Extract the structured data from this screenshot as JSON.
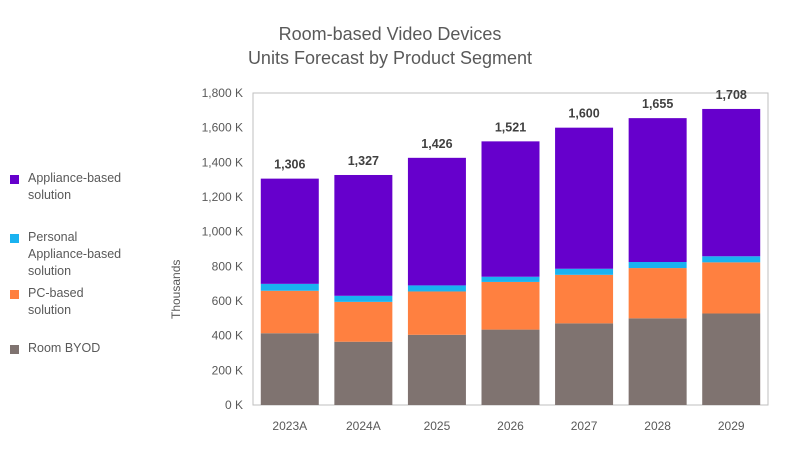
{
  "chart_data": {
    "type": "bar",
    "stacked": true,
    "title": [
      "Room-based Video Devices",
      "Units Forecast by Product Segment"
    ],
    "ylabel": "Thousands",
    "xlabel": "",
    "ylim": [
      0,
      1800
    ],
    "yticks": [
      0,
      200,
      400,
      600,
      800,
      1000,
      1200,
      1400,
      1600,
      1800
    ],
    "ytick_labels": [
      "0 K",
      "200 K",
      "400 K",
      "600 K",
      "800 K",
      "1,000 K",
      "1,200 K",
      "1,400 K",
      "1,600 K",
      "1,800 K"
    ],
    "categories": [
      "2023A",
      "2024A",
      "2025",
      "2026",
      "2027",
      "2028",
      "2029"
    ],
    "series": [
      {
        "name": "Room BYOD",
        "color": "#7f7370",
        "values": [
          414,
          365,
          405,
          435,
          471,
          500,
          528
        ]
      },
      {
        "name": "PC-based\nsolution",
        "color": "#ff8040",
        "values": [
          245,
          230,
          250,
          275,
          280,
          290,
          295
        ]
      },
      {
        "name": "Personal\nAppliance-based\nsolution",
        "color": "#1ab2f0",
        "values": [
          40,
          35,
          35,
          30,
          35,
          35,
          35
        ]
      },
      {
        "name": "Appliance-based\nsolution",
        "color": "#6600cc",
        "values": [
          607,
          697,
          736,
          781,
          814,
          830,
          850
        ]
      }
    ],
    "totals": [
      "1,306",
      "1,327",
      "1,426",
      "1,521",
      "1,600",
      "1,655",
      "1,708"
    ],
    "legend_position": "left",
    "grid": false
  }
}
